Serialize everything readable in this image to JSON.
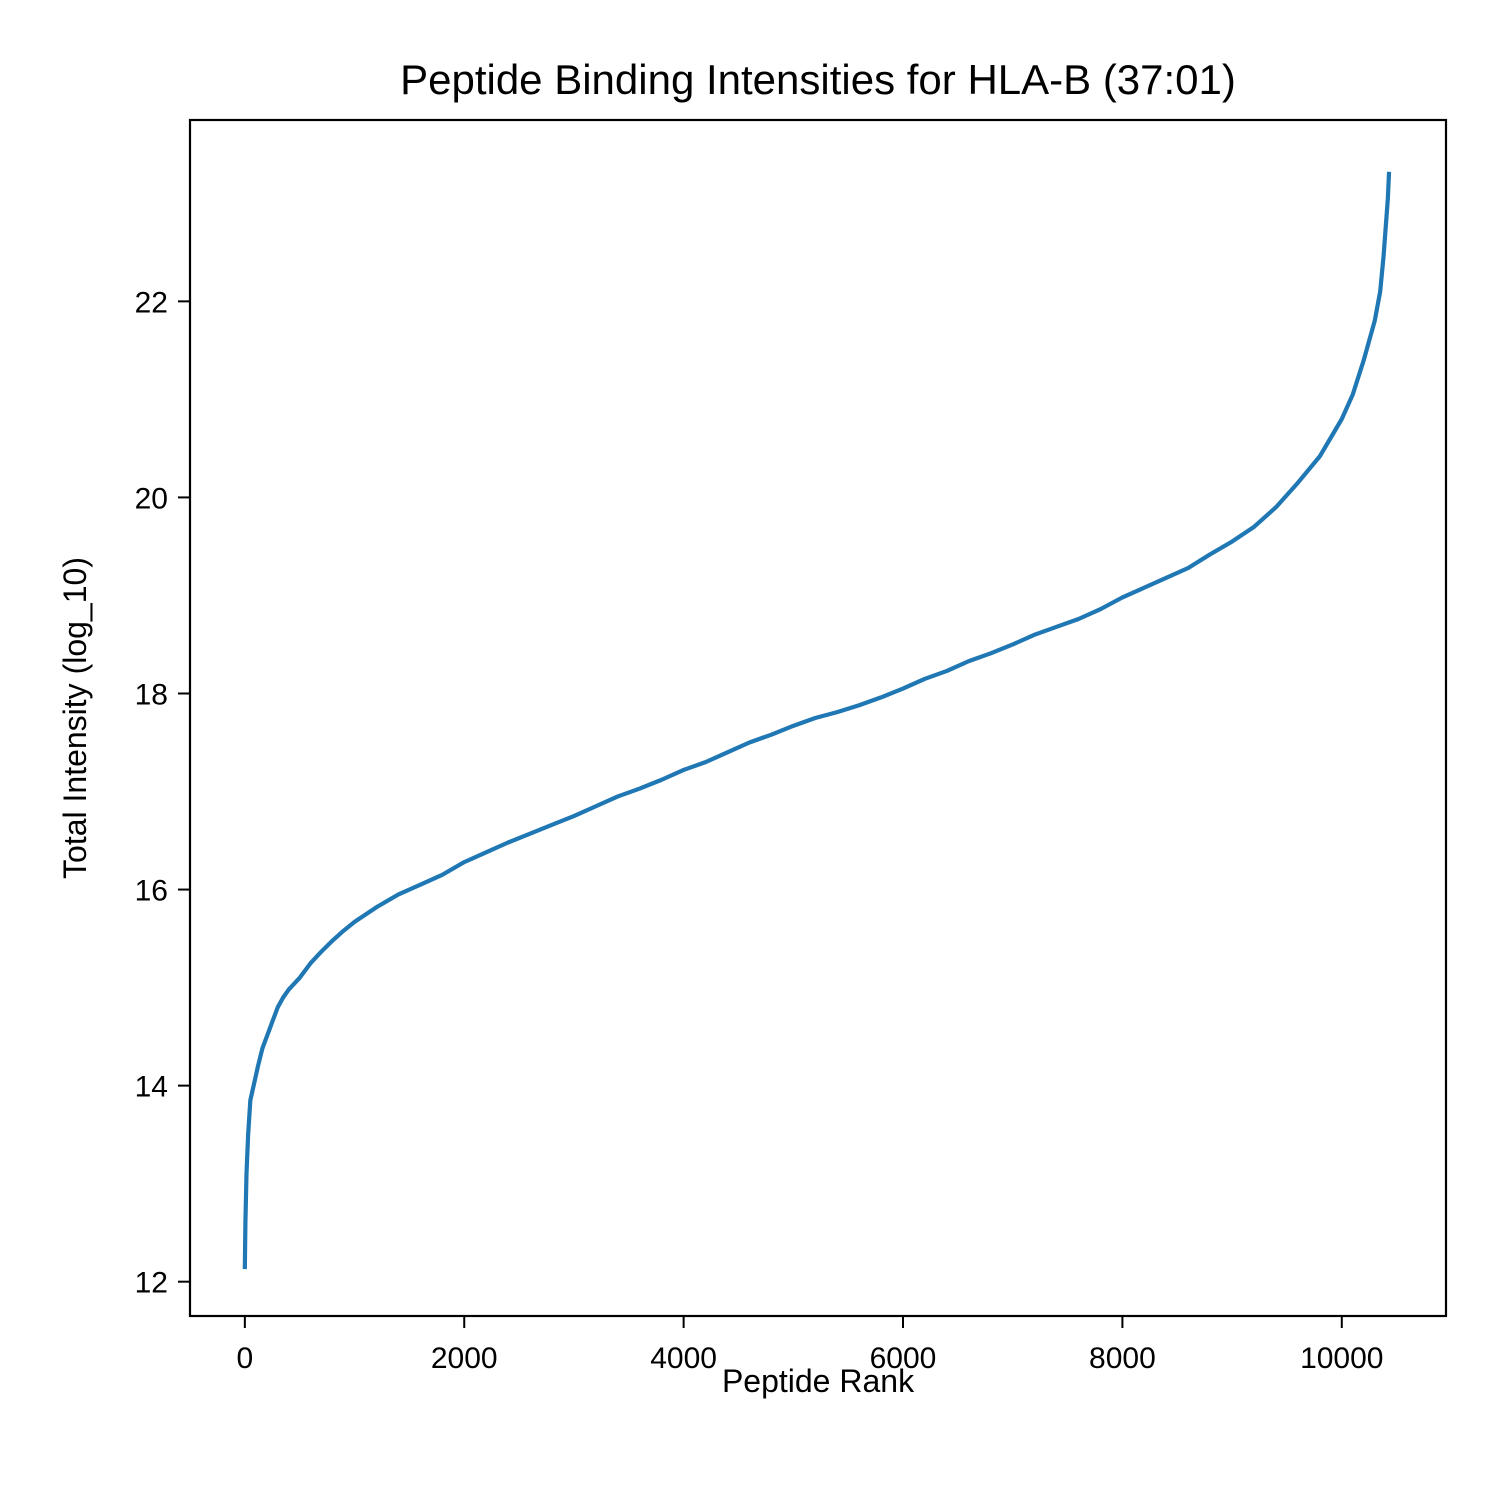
{
  "chart_data": {
    "type": "line",
    "title": "Peptide Binding Intensities for HLA-B (37:01)",
    "xlabel": "Peptide Rank",
    "ylabel": "Total Intensity (log_10)",
    "xlim": [
      -500,
      10950
    ],
    "ylim": [
      11.65,
      23.85
    ],
    "xticks": [
      0,
      2000,
      4000,
      6000,
      8000,
      10000
    ],
    "xtick_labels": [
      "0",
      "2000",
      "4000",
      "6000",
      "8000",
      "10000"
    ],
    "yticks": [
      12,
      14,
      16,
      18,
      20,
      22
    ],
    "ytick_labels": [
      "12",
      "14",
      "16",
      "18",
      "20",
      "22"
    ],
    "grid": false,
    "line_color": "#1f77b4",
    "series": [
      {
        "x": [
          0,
          5,
          15,
          30,
          50,
          80,
          120,
          160,
          200,
          250,
          300,
          350,
          400,
          500,
          600,
          700,
          800,
          900,
          1000,
          1200,
          1400,
          1600,
          1800,
          2000,
          2200,
          2400,
          2600,
          2800,
          3000,
          3200,
          3400,
          3600,
          3800,
          4000,
          4200,
          4400,
          4600,
          4800,
          5000,
          5200,
          5400,
          5600,
          5800,
          6000,
          6200,
          6400,
          6600,
          6800,
          7000,
          7200,
          7400,
          7600,
          7800,
          8000,
          8200,
          8400,
          8600,
          8800,
          9000,
          9200,
          9400,
          9600,
          9800,
          10000,
          10100,
          10200,
          10300,
          10350,
          10380,
          10400,
          10420,
          10430
        ],
        "y": [
          12.15,
          12.6,
          13.1,
          13.5,
          13.85,
          14.0,
          14.2,
          14.38,
          14.5,
          14.65,
          14.8,
          14.9,
          14.98,
          15.1,
          15.25,
          15.37,
          15.48,
          15.58,
          15.67,
          15.82,
          15.95,
          16.05,
          16.15,
          16.28,
          16.38,
          16.48,
          16.57,
          16.66,
          16.75,
          16.85,
          16.95,
          17.03,
          17.12,
          17.22,
          17.3,
          17.4,
          17.5,
          17.58,
          17.67,
          17.75,
          17.81,
          17.88,
          17.96,
          18.05,
          18.15,
          18.23,
          18.33,
          18.41,
          18.5,
          18.6,
          18.68,
          18.76,
          18.86,
          18.98,
          19.08,
          19.18,
          19.28,
          19.42,
          19.55,
          19.7,
          19.9,
          20.15,
          20.42,
          20.8,
          21.05,
          21.4,
          21.8,
          22.1,
          22.45,
          22.75,
          23.05,
          23.3
        ]
      }
    ]
  }
}
